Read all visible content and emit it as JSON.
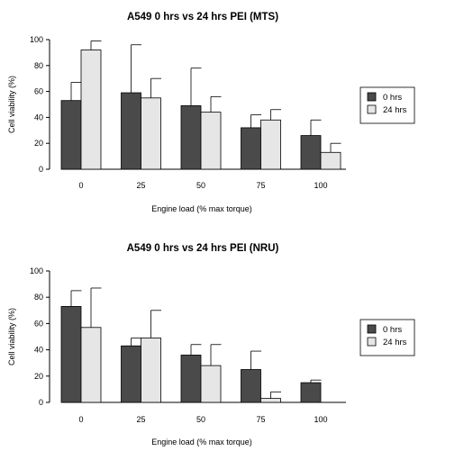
{
  "chart_data": [
    {
      "type": "bar",
      "title": "A549 0 hrs vs 24 hrs PEI (MTS)",
      "xlabel": "Engine load (% max torque)",
      "ylabel": "Cell viability (%)",
      "categories": [
        "0",
        "25",
        "50",
        "75",
        "100"
      ],
      "ylim": [
        0,
        100
      ],
      "yticks": [
        "0",
        "20",
        "40",
        "60",
        "80",
        "100"
      ],
      "grid": false,
      "legend_position": "right",
      "series": [
        {
          "name": "0 hrs",
          "color": "#4a4a4a",
          "values": [
            53,
            59,
            49,
            32,
            26
          ],
          "error_upper": [
            67,
            96,
            78,
            42,
            38
          ]
        },
        {
          "name": "24 hrs",
          "color": "#e6e6e6",
          "values": [
            92,
            55,
            44,
            38,
            13
          ],
          "error_upper": [
            99,
            70,
            56,
            46,
            20
          ]
        }
      ]
    },
    {
      "type": "bar",
      "title": "A549 0 hrs vs 24 hrs PEI (NRU)",
      "xlabel": "Engine load (% max torque)",
      "ylabel": "Cell viability (%)",
      "categories": [
        "0",
        "25",
        "50",
        "75",
        "100"
      ],
      "ylim": [
        0,
        100
      ],
      "yticks": [
        "0",
        "20",
        "40",
        "60",
        "80",
        "100"
      ],
      "grid": false,
      "legend_position": "right",
      "series": [
        {
          "name": "0 hrs",
          "color": "#4a4a4a",
          "values": [
            73,
            43,
            36,
            25,
            15
          ],
          "error_upper": [
            85,
            49,
            44,
            39,
            17
          ]
        },
        {
          "name": "24 hrs",
          "color": "#e6e6e6",
          "values": [
            57,
            49,
            28,
            3,
            null
          ],
          "error_upper": [
            87,
            70,
            44,
            8,
            null
          ]
        }
      ]
    }
  ]
}
